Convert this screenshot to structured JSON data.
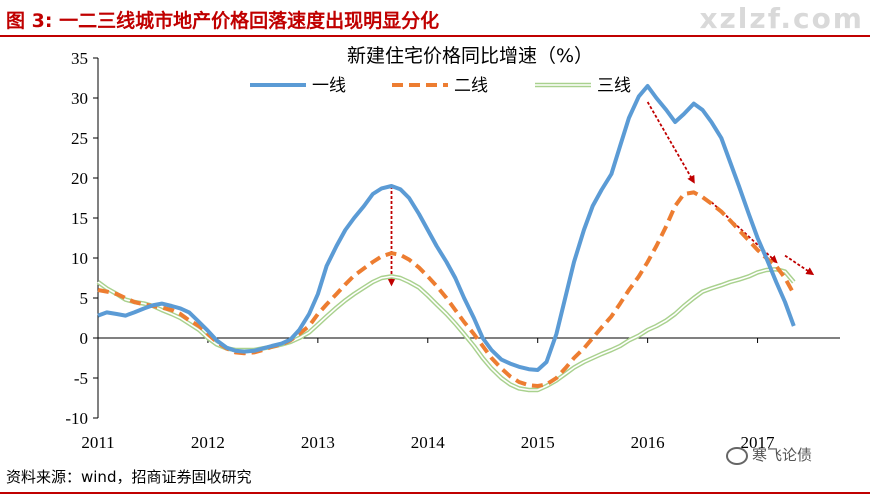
{
  "figure": {
    "label": "图 3:",
    "title": "一二三线城市地产价格回落速度出现明显分化",
    "watermark": "xzlzf.com",
    "source": "资料来源：wind，招商证券固收研究",
    "brand": "寒飞论债"
  },
  "colors": {
    "tier1": "#5b9bd5",
    "tier2": "#ed7d31",
    "tier3": "#a9d18e",
    "arrow": "#c00000",
    "header": "#c00000"
  },
  "chart_data": {
    "type": "line",
    "title": "新建住宅价格同比增速（%）",
    "xlabel": "",
    "ylabel": "",
    "ylim": [
      -10,
      35
    ],
    "yticks": [
      -10,
      -5,
      0,
      5,
      10,
      15,
      20,
      25,
      30,
      35
    ],
    "xlim": [
      2011,
      2017.75
    ],
    "xticks": [
      2011,
      2012,
      2013,
      2014,
      2015,
      2016,
      2017
    ],
    "xtick_labels": [
      "2011",
      "2012",
      "2013",
      "2014",
      "2015",
      "2016",
      "2017"
    ],
    "legend_position": "top",
    "grid": false,
    "series": [
      {
        "name": "一线",
        "color": "#5b9bd5",
        "style": "solid",
        "points": [
          [
            2011.0,
            2.8
          ],
          [
            2011.08,
            3.2
          ],
          [
            2011.17,
            3.0
          ],
          [
            2011.25,
            2.8
          ],
          [
            2011.33,
            3.2
          ],
          [
            2011.42,
            3.7
          ],
          [
            2011.5,
            4.1
          ],
          [
            2011.58,
            4.3
          ],
          [
            2011.67,
            4.0
          ],
          [
            2011.75,
            3.7
          ],
          [
            2011.83,
            3.2
          ],
          [
            2011.92,
            2.0
          ],
          [
            2012.0,
            0.9
          ],
          [
            2012.08,
            -0.3
          ],
          [
            2012.17,
            -1.2
          ],
          [
            2012.25,
            -1.6
          ],
          [
            2012.33,
            -1.7
          ],
          [
            2012.42,
            -1.6
          ],
          [
            2012.5,
            -1.3
          ],
          [
            2012.58,
            -1.0
          ],
          [
            2012.67,
            -0.7
          ],
          [
            2012.75,
            -0.2
          ],
          [
            2012.83,
            1.0
          ],
          [
            2012.92,
            3.0
          ],
          [
            2013.0,
            5.5
          ],
          [
            2013.08,
            9.0
          ],
          [
            2013.17,
            11.5
          ],
          [
            2013.25,
            13.5
          ],
          [
            2013.33,
            15.0
          ],
          [
            2013.42,
            16.5
          ],
          [
            2013.5,
            18.0
          ],
          [
            2013.58,
            18.7
          ],
          [
            2013.67,
            19.0
          ],
          [
            2013.75,
            18.6
          ],
          [
            2013.83,
            17.5
          ],
          [
            2013.92,
            15.5
          ],
          [
            2014.0,
            13.5
          ],
          [
            2014.08,
            11.5
          ],
          [
            2014.17,
            9.5
          ],
          [
            2014.25,
            7.5
          ],
          [
            2014.33,
            5.0
          ],
          [
            2014.42,
            2.5
          ],
          [
            2014.5,
            0.0
          ],
          [
            2014.58,
            -1.5
          ],
          [
            2014.67,
            -2.7
          ],
          [
            2014.75,
            -3.2
          ],
          [
            2014.83,
            -3.6
          ],
          [
            2014.92,
            -3.9
          ],
          [
            2015.0,
            -4.0
          ],
          [
            2015.08,
            -3.0
          ],
          [
            2015.17,
            0.5
          ],
          [
            2015.25,
            5.0
          ],
          [
            2015.33,
            9.5
          ],
          [
            2015.42,
            13.5
          ],
          [
            2015.5,
            16.5
          ],
          [
            2015.58,
            18.5
          ],
          [
            2015.67,
            20.5
          ],
          [
            2015.75,
            24.0
          ],
          [
            2015.83,
            27.5
          ],
          [
            2015.92,
            30.2
          ],
          [
            2016.0,
            31.5
          ],
          [
            2016.08,
            30.0
          ],
          [
            2016.17,
            28.5
          ],
          [
            2016.25,
            27.0
          ],
          [
            2016.33,
            28.0
          ],
          [
            2016.42,
            29.3
          ],
          [
            2016.5,
            28.5
          ],
          [
            2016.58,
            27.0
          ],
          [
            2016.67,
            25.0
          ],
          [
            2016.75,
            22.0
          ],
          [
            2016.83,
            19.0
          ],
          [
            2016.92,
            15.5
          ],
          [
            2017.0,
            12.5
          ],
          [
            2017.08,
            10.0
          ],
          [
            2017.17,
            7.0
          ],
          [
            2017.25,
            4.5
          ],
          [
            2017.33,
            1.5
          ]
        ]
      },
      {
        "name": "二线",
        "color": "#ed7d31",
        "style": "dashed",
        "points": [
          [
            2011.0,
            6.0
          ],
          [
            2011.08,
            5.8
          ],
          [
            2011.17,
            5.5
          ],
          [
            2011.25,
            5.0
          ],
          [
            2011.33,
            4.5
          ],
          [
            2011.42,
            4.2
          ],
          [
            2011.5,
            4.0
          ],
          [
            2011.58,
            3.8
          ],
          [
            2011.67,
            3.5
          ],
          [
            2011.75,
            3.0
          ],
          [
            2011.83,
            2.2
          ],
          [
            2011.92,
            1.5
          ],
          [
            2012.0,
            0.5
          ],
          [
            2012.08,
            -0.5
          ],
          [
            2012.17,
            -1.3
          ],
          [
            2012.25,
            -1.8
          ],
          [
            2012.33,
            -1.9
          ],
          [
            2012.42,
            -1.8
          ],
          [
            2012.5,
            -1.5
          ],
          [
            2012.58,
            -1.1
          ],
          [
            2012.67,
            -0.8
          ],
          [
            2012.75,
            -0.3
          ],
          [
            2012.83,
            0.5
          ],
          [
            2012.92,
            1.5
          ],
          [
            2013.0,
            3.0
          ],
          [
            2013.08,
            4.2
          ],
          [
            2013.17,
            5.5
          ],
          [
            2013.25,
            6.7
          ],
          [
            2013.33,
            7.8
          ],
          [
            2013.42,
            8.7
          ],
          [
            2013.5,
            9.5
          ],
          [
            2013.58,
            10.2
          ],
          [
            2013.67,
            10.6
          ],
          [
            2013.75,
            10.4
          ],
          [
            2013.83,
            9.8
          ],
          [
            2013.92,
            8.8
          ],
          [
            2014.0,
            7.7
          ],
          [
            2014.08,
            6.5
          ],
          [
            2014.17,
            5.0
          ],
          [
            2014.25,
            3.5
          ],
          [
            2014.33,
            2.0
          ],
          [
            2014.42,
            0.5
          ],
          [
            2014.5,
            -1.0
          ],
          [
            2014.58,
            -2.5
          ],
          [
            2014.67,
            -3.8
          ],
          [
            2014.75,
            -4.8
          ],
          [
            2014.83,
            -5.5
          ],
          [
            2014.92,
            -5.9
          ],
          [
            2015.0,
            -6.0
          ],
          [
            2015.08,
            -5.8
          ],
          [
            2015.17,
            -5.0
          ],
          [
            2015.25,
            -3.8
          ],
          [
            2015.33,
            -2.5
          ],
          [
            2015.42,
            -1.3
          ],
          [
            2015.5,
            0.0
          ],
          [
            2015.58,
            1.3
          ],
          [
            2015.67,
            2.7
          ],
          [
            2015.75,
            4.3
          ],
          [
            2015.83,
            6.0
          ],
          [
            2015.92,
            7.7
          ],
          [
            2016.0,
            9.5
          ],
          [
            2016.08,
            11.5
          ],
          [
            2016.17,
            14.0
          ],
          [
            2016.25,
            16.5
          ],
          [
            2016.33,
            18.0
          ],
          [
            2016.42,
            18.2
          ],
          [
            2016.5,
            17.6
          ],
          [
            2016.58,
            16.8
          ],
          [
            2016.67,
            15.8
          ],
          [
            2016.75,
            14.7
          ],
          [
            2016.83,
            13.5
          ],
          [
            2016.92,
            12.2
          ],
          [
            2017.0,
            11.0
          ],
          [
            2017.08,
            10.0
          ],
          [
            2017.17,
            9.0
          ],
          [
            2017.25,
            7.5
          ],
          [
            2017.33,
            5.5
          ]
        ]
      },
      {
        "name": "三线",
        "color": "#a9d18e",
        "style": "double",
        "points": [
          [
            2011.0,
            7.0
          ],
          [
            2011.08,
            6.2
          ],
          [
            2011.17,
            5.5
          ],
          [
            2011.25,
            4.8
          ],
          [
            2011.33,
            4.5
          ],
          [
            2011.42,
            4.3
          ],
          [
            2011.5,
            4.0
          ],
          [
            2011.58,
            3.5
          ],
          [
            2011.67,
            3.0
          ],
          [
            2011.75,
            2.5
          ],
          [
            2011.83,
            1.8
          ],
          [
            2011.92,
            1.0
          ],
          [
            2012.0,
            0.0
          ],
          [
            2012.08,
            -0.8
          ],
          [
            2012.17,
            -1.3
          ],
          [
            2012.25,
            -1.5
          ],
          [
            2012.33,
            -1.5
          ],
          [
            2012.42,
            -1.5
          ],
          [
            2012.5,
            -1.3
          ],
          [
            2012.58,
            -1.1
          ],
          [
            2012.67,
            -0.8
          ],
          [
            2012.75,
            -0.5
          ],
          [
            2012.83,
            0.0
          ],
          [
            2012.92,
            0.7
          ],
          [
            2013.0,
            1.7
          ],
          [
            2013.08,
            2.7
          ],
          [
            2013.17,
            3.8
          ],
          [
            2013.25,
            4.7
          ],
          [
            2013.33,
            5.5
          ],
          [
            2013.42,
            6.3
          ],
          [
            2013.5,
            7.0
          ],
          [
            2013.58,
            7.5
          ],
          [
            2013.67,
            7.7
          ],
          [
            2013.75,
            7.5
          ],
          [
            2013.83,
            7.0
          ],
          [
            2013.92,
            6.3
          ],
          [
            2014.0,
            5.3
          ],
          [
            2014.08,
            4.2
          ],
          [
            2014.17,
            3.0
          ],
          [
            2014.25,
            1.8
          ],
          [
            2014.33,
            0.5
          ],
          [
            2014.42,
            -1.0
          ],
          [
            2014.5,
            -2.5
          ],
          [
            2014.58,
            -3.8
          ],
          [
            2014.67,
            -5.0
          ],
          [
            2014.75,
            -5.8
          ],
          [
            2014.83,
            -6.3
          ],
          [
            2014.92,
            -6.5
          ],
          [
            2015.0,
            -6.5
          ],
          [
            2015.08,
            -6.0
          ],
          [
            2015.17,
            -5.3
          ],
          [
            2015.25,
            -4.5
          ],
          [
            2015.33,
            -3.7
          ],
          [
            2015.42,
            -3.0
          ],
          [
            2015.5,
            -2.5
          ],
          [
            2015.58,
            -2.0
          ],
          [
            2015.67,
            -1.5
          ],
          [
            2015.75,
            -1.0
          ],
          [
            2015.83,
            -0.3
          ],
          [
            2015.92,
            0.3
          ],
          [
            2016.0,
            1.0
          ],
          [
            2016.08,
            1.5
          ],
          [
            2016.17,
            2.2
          ],
          [
            2016.25,
            3.0
          ],
          [
            2016.33,
            4.0
          ],
          [
            2016.42,
            5.0
          ],
          [
            2016.5,
            5.8
          ],
          [
            2016.58,
            6.2
          ],
          [
            2016.67,
            6.6
          ],
          [
            2016.75,
            7.0
          ],
          [
            2016.83,
            7.3
          ],
          [
            2016.92,
            7.7
          ],
          [
            2017.0,
            8.2
          ],
          [
            2017.08,
            8.5
          ],
          [
            2017.17,
            8.6
          ],
          [
            2017.25,
            8.3
          ],
          [
            2017.33,
            7.0
          ]
        ]
      }
    ],
    "annotations": [
      {
        "type": "arrow",
        "from": [
          2013.67,
          19.0
        ],
        "to": [
          2013.67,
          6.7
        ]
      },
      {
        "type": "arrow",
        "from": [
          2016.0,
          29.5
        ],
        "to": [
          2016.42,
          19.5
        ]
      },
      {
        "type": "arrow",
        "from": [
          2016.58,
          17.0
        ],
        "to": [
          2017.17,
          9.5
        ]
      },
      {
        "type": "arrow",
        "from": [
          2017.25,
          10.3
        ],
        "to": [
          2017.5,
          8.0
        ]
      }
    ]
  }
}
